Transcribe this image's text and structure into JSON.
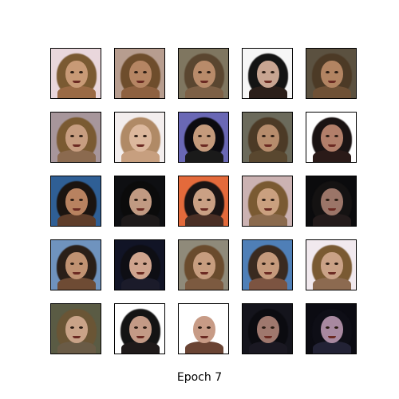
{
  "figure": {
    "caption": "Epoch 7",
    "grid": {
      "rows": 5,
      "cols": 5
    },
    "samples": [
      {
        "bg": "#e9d7dc",
        "hair": "#7a5a32",
        "skin": "#c89a76",
        "shoulder": "#9a6a45"
      },
      {
        "bg": "#b79d8f",
        "hair": "#6e4d2c",
        "skin": "#b58563",
        "shoulder": "#8e6140"
      },
      {
        "bg": "#7f7660",
        "hair": "#5a4630",
        "skin": "#b88b6a",
        "shoulder": "#7d6046"
      },
      {
        "bg": "#f6f6f6",
        "hair": "#141414",
        "skin": "#c8a592",
        "shoulder": "#2b1f1a"
      },
      {
        "bg": "#5b5140",
        "hair": "#4c3a26",
        "skin": "#b28462",
        "shoulder": "#6f5136"
      },
      {
        "bg": "#a7969b",
        "hair": "#7a5a32",
        "skin": "#c79d80",
        "shoulder": "#8b6a4f"
      },
      {
        "bg": "#f3eeee",
        "hair": "#b08a66",
        "skin": "#dcb89d",
        "shoulder": "#c79f7f"
      },
      {
        "bg": "#6a68b5",
        "hair": "#0c0b10",
        "skin": "#c49a7c",
        "shoulder": "#1a1a1a"
      },
      {
        "bg": "#6b6a5b",
        "hair": "#4c3a26",
        "skin": "#b68c6c",
        "shoulder": "#59472f"
      },
      {
        "bg": "#ffffff",
        "hair": "#1a1313",
        "skin": "#b27f6a",
        "shoulder": "#2a1a18"
      },
      {
        "bg": "#2f5f95",
        "hair": "#1b1410",
        "skin": "#b88260",
        "shoulder": "#5e3d2a"
      },
      {
        "bg": "#0e0f12",
        "hair": "#0b0b0b",
        "skin": "#c19a82",
        "shoulder": "#1e1a1a"
      },
      {
        "bg": "#e46a3b",
        "hair": "#1a1414",
        "skin": "#caa084",
        "shoulder": "#4a2f25"
      },
      {
        "bg": "#cbb2b2",
        "hair": "#7a5a32",
        "skin": "#caa07f",
        "shoulder": "#8a6a4d"
      },
      {
        "bg": "#0b0b0d",
        "hair": "#141212",
        "skin": "#9b7568",
        "shoulder": "#231b1b"
      },
      {
        "bg": "#6f93be",
        "hair": "#2a1f18",
        "skin": "#c09272",
        "shoulder": "#6e4b34"
      },
      {
        "bg": "#111426",
        "hair": "#0e0e14",
        "skin": "#cfa48e",
        "shoulder": "#1b1b2a"
      },
      {
        "bg": "#8f8a7a",
        "hair": "#6a4b2d",
        "skin": "#c79d7f",
        "shoulder": "#7c5a40"
      },
      {
        "bg": "#4f7fb7",
        "hair": "#3a2a1f",
        "skin": "#c59a7c",
        "shoulder": "#7c5441"
      },
      {
        "bg": "#f1e9ee",
        "hair": "#7a5a32",
        "skin": "#caa287",
        "shoulder": "#8c6a50"
      },
      {
        "bg": "#5a5b44",
        "hair": "#6a5535",
        "skin": "#c9a388",
        "shoulder": "#6a5b46"
      },
      {
        "bg": "#ffffff",
        "hair": "#141414",
        "skin": "#c39a86",
        "shoulder": "#1f1a1a"
      },
      {
        "bg": "#ffffff",
        "hair": "#ffffff",
        "skin": "#c79b86",
        "shoulder": "#6a4434"
      },
      {
        "bg": "#14141c",
        "hair": "#0b0b10",
        "skin": "#9f786e",
        "shoulder": "#1a1822"
      },
      {
        "bg": "#0b0b12",
        "hair": "#0e0e16",
        "skin": "#a889a0",
        "shoulder": "#222235"
      }
    ]
  }
}
